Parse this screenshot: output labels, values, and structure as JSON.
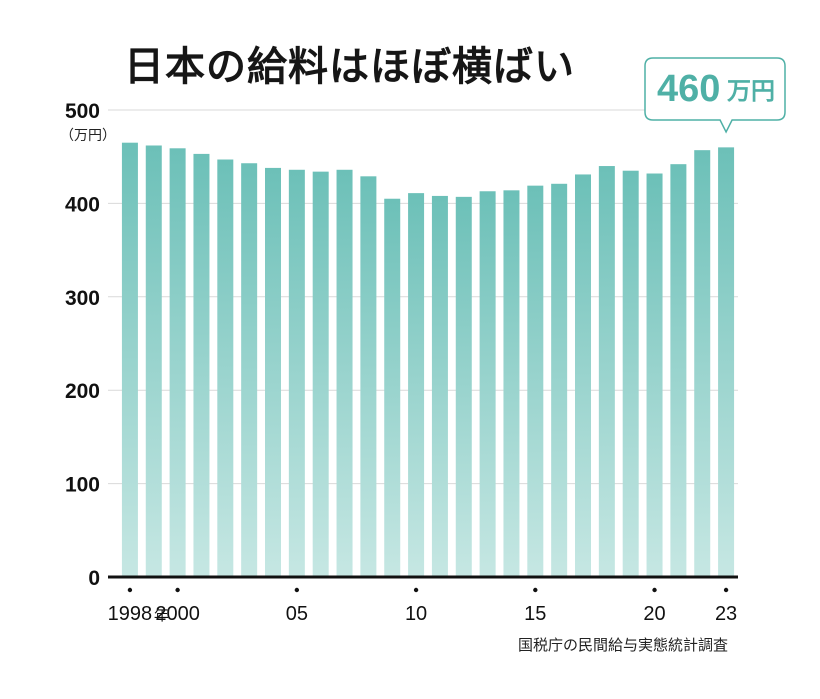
{
  "title": "日本の給料はほぼ横ばい",
  "unit_label": "（万円）",
  "source": "国税庁の民間給与実態統計調査",
  "callout": {
    "number": "460",
    "unit": "万円"
  },
  "colors": {
    "bar_top": "#6cc0b8",
    "bar_bottom": "#c6e7e3",
    "callout_text": "#4fb0a6",
    "callout_border": "#4fb0a6",
    "axis": "#111111",
    "grid": "#d9d9d9"
  },
  "chart_data": {
    "type": "bar",
    "categories": [
      "1998",
      "1999",
      "2000",
      "2001",
      "2002",
      "2003",
      "2004",
      "2005",
      "2006",
      "2007",
      "2008",
      "2009",
      "2010",
      "2011",
      "2012",
      "2013",
      "2014",
      "2015",
      "2016",
      "2017",
      "2018",
      "2019",
      "2020",
      "2021",
      "2022",
      "2023"
    ],
    "values": [
      465,
      462,
      459,
      453,
      447,
      443,
      438,
      436,
      434,
      436,
      429,
      405,
      411,
      408,
      407,
      413,
      414,
      419,
      421,
      431,
      440,
      435,
      432,
      442,
      457,
      460
    ],
    "ylim": [
      0,
      500
    ],
    "yticks": [
      "0",
      "100",
      "200",
      "300",
      "400",
      "500"
    ],
    "xticks": [
      {
        "index": 0,
        "label": "1998",
        "suffix": "年"
      },
      {
        "index": 2,
        "label": "2000"
      },
      {
        "index": 7,
        "label": "05"
      },
      {
        "index": 12,
        "label": "10"
      },
      {
        "index": 17,
        "label": "15"
      },
      {
        "index": 22,
        "label": "20"
      },
      {
        "index": 25,
        "label": "23"
      }
    ],
    "grid": true,
    "title": "日本の給料はほぼ横ばい",
    "ylabel": "（万円）",
    "xlabel": ""
  }
}
